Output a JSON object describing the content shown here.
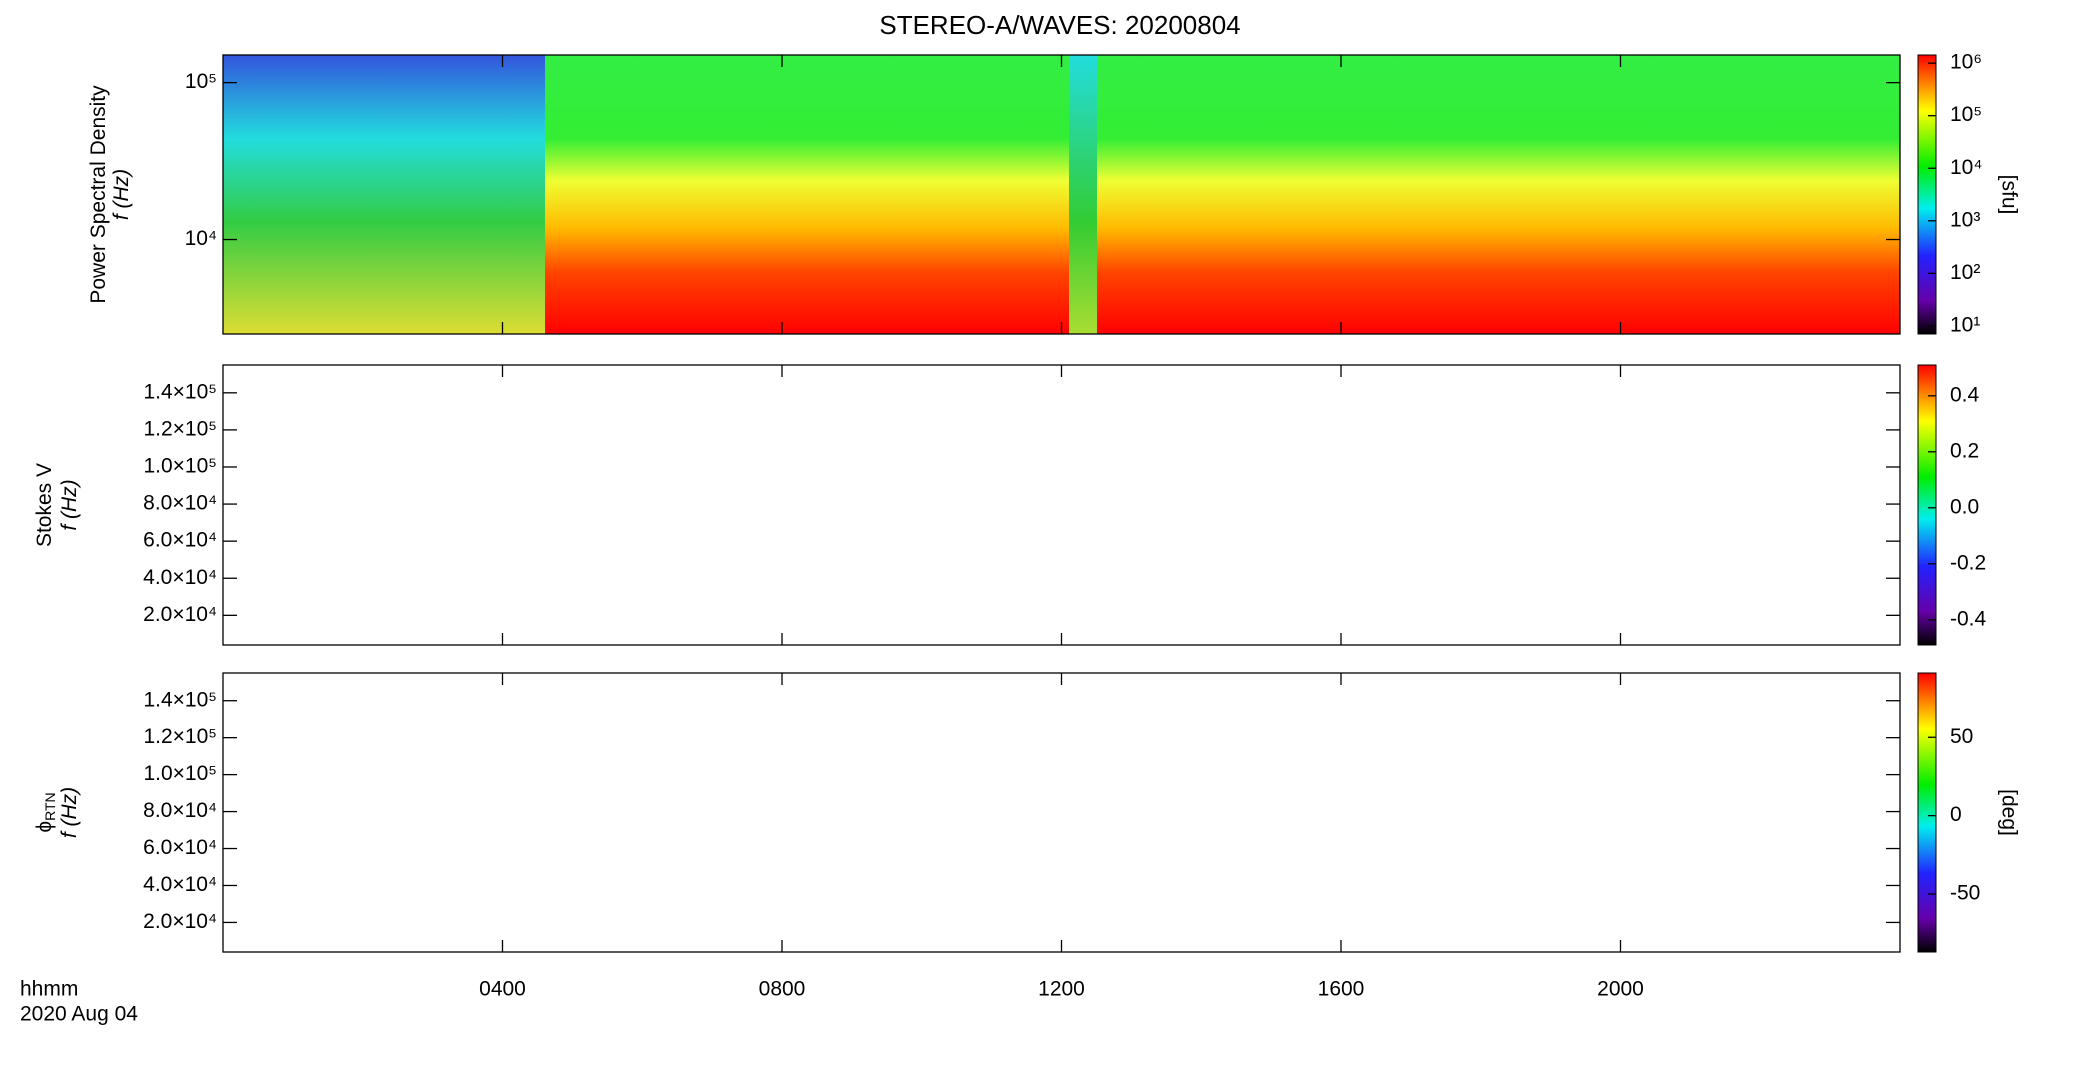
{
  "chart_data": {
    "type": "spectrogram",
    "title": "STEREO-A/WAVES: 20200804",
    "xlim": [
      0,
      24
    ],
    "xticks": [
      {
        "value": 4,
        "label": "0400"
      },
      {
        "value": 8,
        "label": "0800"
      },
      {
        "value": 12,
        "label": "1200"
      },
      {
        "value": 16,
        "label": "1600"
      },
      {
        "value": 20,
        "label": "2000"
      }
    ],
    "xlabel": [
      "hhmm",
      "2020 Aug 04"
    ],
    "panels": [
      {
        "ylabel": [
          "Power Spectral Density",
          "f (Hz)"
        ],
        "ylog": true,
        "ylim": [
          2500,
          150000
        ],
        "yticks": [
          {
            "value": 10000,
            "label": "10⁴"
          },
          {
            "value": 100000,
            "label": "10⁵"
          }
        ],
        "clog": true,
        "clim": [
          7,
          1430000
        ],
        "cticks": [
          {
            "value": 10,
            "label": "10¹"
          },
          {
            "value": 100,
            "label": "10²"
          },
          {
            "value": 1000,
            "label": "10³"
          },
          {
            "value": 10000,
            "label": "10⁴"
          },
          {
            "value": 100000,
            "label": "10⁵"
          },
          {
            "value": 1000000,
            "label": "10⁶"
          }
        ],
        "clabel": "[sfu]"
      },
      {
        "ylabel": [
          "Stokes V",
          "f (Hz)"
        ],
        "ylog": false,
        "ylim": [
          4000,
          155000
        ],
        "yticks": [
          {
            "value": 20000,
            "label": "2.0×10⁴"
          },
          {
            "value": 40000,
            "label": "4.0×10⁴"
          },
          {
            "value": 60000,
            "label": "6.0×10⁴"
          },
          {
            "value": 80000,
            "label": "8.0×10⁴"
          },
          {
            "value": 100000,
            "label": "1.0×10⁵"
          },
          {
            "value": 120000,
            "label": "1.2×10⁵"
          },
          {
            "value": 140000,
            "label": "1.4×10⁵"
          }
        ],
        "clog": false,
        "clim": [
          -0.49,
          0.51
        ],
        "cticks": [
          {
            "value": -0.4,
            "label": "-0.4"
          },
          {
            "value": -0.2,
            "label": "-0.2"
          },
          {
            "value": 0,
            "label": "0.0"
          },
          {
            "value": 0.2,
            "label": "0.2"
          },
          {
            "value": 0.4,
            "label": "0.4"
          }
        ]
      },
      {
        "ylabel": [
          "ϕ",
          "f (Hz)"
        ],
        "ylabel_sub": "RTN",
        "ylog": false,
        "ylim": [
          4000,
          155000
        ],
        "yticks": [
          {
            "value": 20000,
            "label": "2.0×10⁴"
          },
          {
            "value": 40000,
            "label": "4.0×10⁴"
          },
          {
            "value": 60000,
            "label": "6.0×10⁴"
          },
          {
            "value": 80000,
            "label": "8.0×10⁴"
          },
          {
            "value": 100000,
            "label": "1.0×10⁵"
          },
          {
            "value": 120000,
            "label": "1.2×10⁵"
          },
          {
            "value": 140000,
            "label": "1.4×10⁵"
          }
        ],
        "clog": false,
        "clim": [
          -87,
          91
        ],
        "cticks": [
          -50,
          0,
          50
        ],
        "clabel": "[deg]"
      }
    ]
  }
}
